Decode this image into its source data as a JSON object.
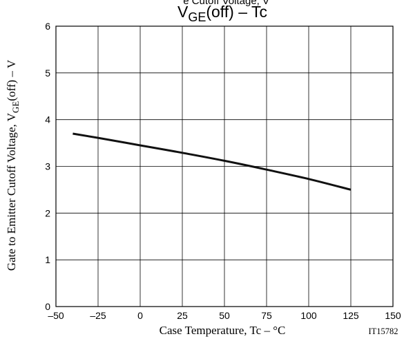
{
  "chart_data": {
    "type": "line",
    "title": {
      "main": "V",
      "sub": "GE",
      "suffix": "(off)  –  Tc"
    },
    "clipped_top_text": "e Cutoff Voltage, V",
    "xlabel": "Case Temperature, Tc  –  °C",
    "ylabel": {
      "prefix": "Gate to Emitter Cutoff  Voltage, V",
      "sub": "GE",
      "suffix": "(off)  –  V"
    },
    "x_ticks": [
      "–50",
      "–25",
      "0",
      "25",
      "50",
      "75",
      "100",
      "125",
      "150"
    ],
    "y_ticks": [
      "0",
      "1",
      "2",
      "3",
      "4",
      "5",
      "6"
    ],
    "xlim": [
      -50,
      150
    ],
    "ylim": [
      0,
      6
    ],
    "grid": true,
    "figure_id": "IT15782",
    "series": [
      {
        "x": [
          -40,
          -25,
          0,
          25,
          50,
          75,
          100,
          125
        ],
        "y": [
          3.7,
          3.61,
          3.45,
          3.29,
          3.12,
          2.93,
          2.73,
          2.5
        ]
      }
    ]
  }
}
